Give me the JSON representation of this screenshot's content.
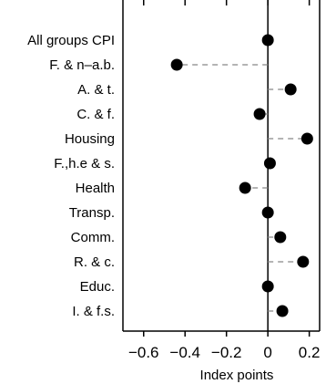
{
  "chart_data": {
    "type": "scatter",
    "style": "dot-plot",
    "categories": [
      "All groups CPI",
      "F. & n–a.b.",
      "A. & t.",
      "C. & f.",
      "Housing",
      "F.,h.e & s.",
      "Health",
      "Transp.",
      "Comm.",
      "R. & c.",
      "Educ.",
      "I. & f.s."
    ],
    "values": [
      0.0,
      -0.44,
      0.11,
      -0.04,
      0.19,
      0.01,
      -0.11,
      0.0,
      0.06,
      0.17,
      0.0,
      0.07
    ],
    "xlabel": "Index points",
    "xlim": [
      -0.7,
      0.25
    ],
    "xticks": [
      -0.6,
      -0.4,
      -0.2,
      0,
      0.2
    ],
    "xtick_labels": [
      "−0.6",
      "−0.4",
      "−0.2",
      "0",
      "0.2"
    ],
    "colors": {
      "marker": "#000000",
      "connector": "#888888",
      "axis": "#000000"
    },
    "reference_line_at": 0,
    "grid": false,
    "legend": "none"
  }
}
